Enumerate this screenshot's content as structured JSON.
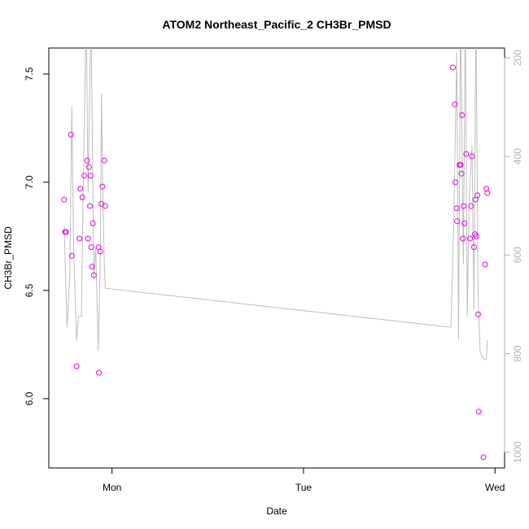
{
  "chart_data": {
    "type": "scatter",
    "title": "ATOM2 Northeast_Pacific_2 CH3Br_PMSD",
    "xlabel": "Date",
    "ylabel": "CH3Br_PMSD",
    "x_ticks": [
      "Mon",
      "Tue",
      "Wed"
    ],
    "y_ticks": [
      "6.0",
      "6.5",
      "7.0",
      "7.5"
    ],
    "ylim": [
      5.68,
      7.62
    ],
    "xlim": [
      -0.33,
      2.05
    ],
    "y2_ticks": [
      "200",
      "400",
      "600",
      "800",
      "1000"
    ],
    "y2lim": [
      1032,
      180
    ],
    "grid": false,
    "point_color": "#e600e6",
    "line_color": "#bdbdbd",
    "points": [
      [
        -0.25,
        6.92
      ],
      [
        -0.245,
        6.77
      ],
      [
        -0.24,
        6.77
      ],
      [
        -0.215,
        7.22
      ],
      [
        -0.21,
        6.66
      ],
      [
        -0.185,
        6.15
      ],
      [
        -0.17,
        6.74
      ],
      [
        -0.165,
        6.97
      ],
      [
        -0.155,
        6.93
      ],
      [
        -0.145,
        7.03
      ],
      [
        -0.13,
        7.1
      ],
      [
        -0.125,
        6.74
      ],
      [
        -0.12,
        7.07
      ],
      [
        -0.115,
        6.89
      ],
      [
        -0.112,
        7.03
      ],
      [
        -0.108,
        6.7
      ],
      [
        -0.104,
        6.61
      ],
      [
        -0.1,
        6.81
      ],
      [
        -0.095,
        6.57
      ],
      [
        -0.07,
        6.7
      ],
      [
        -0.068,
        6.12
      ],
      [
        -0.062,
        6.68
      ],
      [
        -0.056,
        6.9
      ],
      [
        -0.05,
        6.98
      ],
      [
        -0.04,
        7.1
      ],
      [
        -0.035,
        6.89
      ],
      [
        1.78,
        7.53
      ],
      [
        1.79,
        7.36
      ],
      [
        1.793,
        7.0
      ],
      [
        1.8,
        6.88
      ],
      [
        1.802,
        6.82
      ],
      [
        1.815,
        7.08
      ],
      [
        1.82,
        7.08
      ],
      [
        1.825,
        7.04
      ],
      [
        1.828,
        7.31
      ],
      [
        1.832,
        6.74
      ],
      [
        1.836,
        6.89
      ],
      [
        1.84,
        6.81
      ],
      [
        1.85,
        7.13
      ],
      [
        1.87,
        6.74
      ],
      [
        1.875,
        6.89
      ],
      [
        1.88,
        7.12
      ],
      [
        1.89,
        6.7
      ],
      [
        1.895,
        6.76
      ],
      [
        1.898,
        6.92
      ],
      [
        1.902,
        6.75
      ],
      [
        1.908,
        6.94
      ],
      [
        1.912,
        6.39
      ],
      [
        1.915,
        5.94
      ],
      [
        1.94,
        5.73
      ],
      [
        1.948,
        6.62
      ],
      [
        1.955,
        6.97
      ],
      [
        1.96,
        6.95
      ]
    ],
    "line_series": [
      [
        -0.25,
        6.8
      ],
      [
        -0.235,
        6.33
      ],
      [
        -0.22,
        6.58
      ],
      [
        -0.21,
        7.35
      ],
      [
        -0.2,
        6.68
      ],
      [
        -0.185,
        6.27
      ],
      [
        -0.175,
        6.38
      ],
      [
        -0.16,
        6.38
      ],
      [
        -0.15,
        7.0
      ],
      [
        -0.135,
        7.8
      ],
      [
        -0.125,
        6.95
      ],
      [
        -0.11,
        7.8
      ],
      [
        -0.095,
        6.55
      ],
      [
        -0.085,
        6.7
      ],
      [
        -0.072,
        6.22
      ],
      [
        -0.062,
        6.62
      ],
      [
        -0.055,
        7.41
      ],
      [
        -0.048,
        6.92
      ],
      [
        -0.04,
        6.62
      ],
      [
        -0.035,
        6.51
      ],
      [
        1.77,
        6.33
      ],
      [
        1.785,
        6.82
      ],
      [
        1.8,
        7.6
      ],
      [
        1.81,
        6.27
      ],
      [
        1.82,
        7.8
      ],
      [
        1.835,
        6.62
      ],
      [
        1.845,
        7.8
      ],
      [
        1.855,
        6.38
      ],
      [
        1.865,
        6.92
      ],
      [
        1.88,
        7.17
      ],
      [
        1.89,
        6.41
      ],
      [
        1.9,
        7.8
      ],
      [
        1.912,
        6.48
      ],
      [
        1.922,
        6.22
      ],
      [
        1.935,
        6.19
      ],
      [
        1.948,
        6.18
      ],
      [
        1.955,
        6.18
      ],
      [
        1.96,
        6.27
      ]
    ]
  }
}
